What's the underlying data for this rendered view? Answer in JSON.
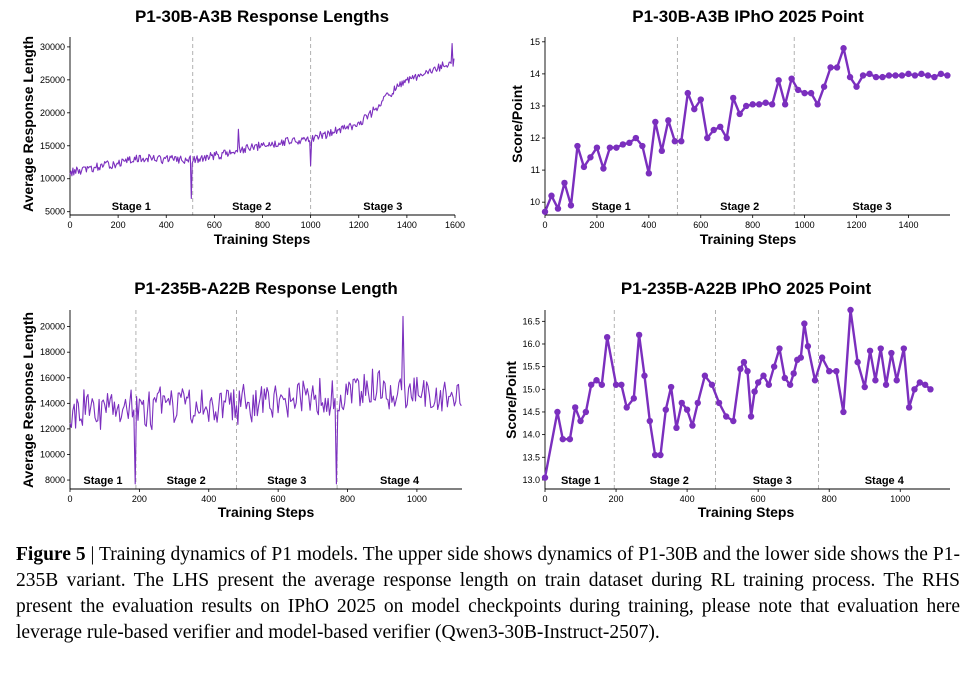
{
  "caption": {
    "label": "Figure 5",
    "text": "| Training dynamics of P1 models. The upper side shows dynamics of P1-30B and the lower side shows the P1-235B variant. The LHS present the average response length on train dataset during RL training process. The RHS present the evaluation results on IPhO 2025 on model checkpoints during training, please note that evaluation here leverage rule-based verifier and model-based verifier (Qwen3-30B-Instruct-2507)."
  },
  "colors": {
    "line": "#7b2fbe",
    "stage_divider": "#aaaaaa"
  },
  "chart_data": [
    {
      "id": "p30-length",
      "type": "line",
      "title": "P1-30B-A3B Response Lengths",
      "xlabel": "Training Steps",
      "ylabel": "Average Response Length",
      "xlim": [
        0,
        1600
      ],
      "ylim": [
        4500,
        31500
      ],
      "xticks": [
        0,
        200,
        400,
        600,
        800,
        1000,
        1200,
        1400,
        1600
      ],
      "yticks": [
        5000,
        10000,
        15000,
        20000,
        25000,
        30000
      ],
      "stage_boundaries": [
        510,
        1000
      ],
      "stages": [
        {
          "label": "Stage 1",
          "x": 255
        },
        {
          "label": "Stage 2",
          "x": 755
        },
        {
          "label": "Stage 3",
          "x": 1300
        }
      ],
      "markers": false,
      "noise": 600,
      "anchors_x": [
        0,
        100,
        200,
        300,
        400,
        510,
        600,
        700,
        800,
        900,
        1000,
        1100,
        1200,
        1250,
        1300,
        1350,
        1400,
        1450,
        1500,
        1550,
        1600
      ],
      "anchors_y": [
        11000,
        11600,
        12400,
        13100,
        13000,
        12800,
        13500,
        14200,
        15000,
        15700,
        16000,
        17200,
        18500,
        19800,
        22000,
        23500,
        24800,
        25500,
        26200,
        27200,
        27500
      ],
      "spikes": [
        [
          505,
          7000
        ],
        [
          1000,
          12000
        ],
        [
          700,
          17500
        ],
        [
          1590,
          30500
        ]
      ]
    },
    {
      "id": "p30-ipho",
      "type": "line",
      "title": "P1-30B-A3B IPhO 2025 Point",
      "xlabel": "Training Steps",
      "ylabel": "Score/Point",
      "xlim": [
        0,
        1560
      ],
      "ylim": [
        9.6,
        15.15
      ],
      "xticks": [
        0,
        200,
        400,
        600,
        800,
        1000,
        1200,
        1400
      ],
      "yticks": [
        10,
        11,
        12,
        13,
        14,
        15
      ],
      "stage_boundaries": [
        510,
        960
      ],
      "stages": [
        {
          "label": "Stage 1",
          "x": 255
        },
        {
          "label": "Stage 2",
          "x": 750
        },
        {
          "label": "Stage 3",
          "x": 1260
        }
      ],
      "markers": true,
      "x": [
        0,
        25,
        50,
        75,
        100,
        125,
        150,
        175,
        200,
        225,
        250,
        275,
        300,
        325,
        350,
        375,
        400,
        425,
        450,
        475,
        500,
        525,
        550,
        575,
        600,
        625,
        650,
        675,
        700,
        725,
        750,
        775,
        800,
        825,
        850,
        875,
        900,
        925,
        950,
        975,
        1000,
        1025,
        1050,
        1075,
        1100,
        1125,
        1150,
        1175,
        1200,
        1225,
        1250,
        1275,
        1300,
        1325,
        1350,
        1375,
        1400,
        1425,
        1450,
        1475,
        1500,
        1525,
        1550
      ],
      "y": [
        9.7,
        10.2,
        9.8,
        10.6,
        9.9,
        11.75,
        11.1,
        11.4,
        11.7,
        11.05,
        11.7,
        11.7,
        11.8,
        11.85,
        12.0,
        11.75,
        10.9,
        12.5,
        11.6,
        12.55,
        11.9,
        11.9,
        13.4,
        12.9,
        13.2,
        12.0,
        12.25,
        12.35,
        12.0,
        13.25,
        12.75,
        13.0,
        13.05,
        13.05,
        13.1,
        13.05,
        13.8,
        13.05,
        13.85,
        13.5,
        13.4,
        13.4,
        13.05,
        13.6,
        14.2,
        14.2,
        14.8,
        13.9,
        13.6,
        13.95,
        14.0,
        13.9,
        13.9,
        13.95,
        13.95,
        13.95,
        14.0,
        13.95,
        14.0,
        13.95,
        13.9,
        14.0,
        13.95
      ]
    },
    {
      "id": "p235-length",
      "type": "line",
      "title": "P1-235B-A22B Response Length",
      "xlabel": "Training Steps",
      "ylabel": "Average Response Length",
      "xlim": [
        0,
        1130
      ],
      "ylim": [
        7300,
        21300
      ],
      "xticks": [
        0,
        200,
        400,
        600,
        800,
        1000
      ],
      "yticks": [
        8000,
        10000,
        12000,
        14000,
        16000,
        18000,
        20000
      ],
      "stage_boundaries": [
        190,
        480,
        770
      ],
      "stages": [
        {
          "label": "Stage 1",
          "x": 95
        },
        {
          "label": "Stage 2",
          "x": 335
        },
        {
          "label": "Stage 3",
          "x": 625
        },
        {
          "label": "Stage 4",
          "x": 950
        }
      ],
      "markers": false,
      "noise": 1400,
      "anchors_x": [
        0,
        100,
        190,
        300,
        400,
        480,
        600,
        700,
        770,
        850,
        950,
        1050,
        1130
      ],
      "anchors_y": [
        13200,
        13800,
        13500,
        13800,
        13700,
        13900,
        14500,
        14400,
        14200,
        15200,
        15000,
        14800,
        14300
      ],
      "spikes": [
        [
          190,
          7700
        ],
        [
          770,
          7700
        ],
        [
          960,
          20800
        ]
      ]
    },
    {
      "id": "p235-ipho",
      "type": "line",
      "title": "P1-235B-A22B IPhO 2025 Point",
      "xlabel": "Training Steps",
      "ylabel": "Score/Point",
      "xlim": [
        0,
        1140
      ],
      "ylim": [
        12.8,
        16.75
      ],
      "xticks": [
        0,
        200,
        400,
        600,
        800,
        1000
      ],
      "yticks": [
        13.0,
        13.5,
        14.0,
        14.5,
        15.0,
        15.5,
        16.0,
        16.5
      ],
      "stage_boundaries": [
        195,
        480,
        770
      ],
      "stages": [
        {
          "label": "Stage 1",
          "x": 100
        },
        {
          "label": "Stage 2",
          "x": 350
        },
        {
          "label": "Stage 3",
          "x": 640
        },
        {
          "label": "Stage 4",
          "x": 955
        }
      ],
      "markers": true,
      "x": [
        0,
        35,
        50,
        70,
        85,
        100,
        115,
        130,
        145,
        160,
        175,
        200,
        215,
        230,
        250,
        265,
        280,
        295,
        310,
        325,
        340,
        355,
        370,
        385,
        400,
        415,
        430,
        450,
        470,
        490,
        510,
        530,
        550,
        560,
        570,
        580,
        590,
        600,
        615,
        630,
        645,
        660,
        675,
        690,
        700,
        710,
        720,
        730,
        740,
        760,
        780,
        800,
        820,
        840,
        860,
        880,
        900,
        915,
        930,
        945,
        960,
        975,
        990,
        1010,
        1025,
        1040,
        1055,
        1070,
        1085
      ],
      "y": [
        13.05,
        14.5,
        13.9,
        13.9,
        14.6,
        14.3,
        14.5,
        15.1,
        15.2,
        15.1,
        16.15,
        15.1,
        15.1,
        14.6,
        14.8,
        16.2,
        15.3,
        14.3,
        13.55,
        13.55,
        14.55,
        15.05,
        14.15,
        14.7,
        14.55,
        14.2,
        14.7,
        15.3,
        15.1,
        14.7,
        14.4,
        14.3,
        15.45,
        15.6,
        15.4,
        14.4,
        14.95,
        15.15,
        15.3,
        15.1,
        15.5,
        15.9,
        15.25,
        15.1,
        15.35,
        15.65,
        15.7,
        16.45,
        15.95,
        15.2,
        15.7,
        15.4,
        15.4,
        14.5,
        16.75,
        15.6,
        15.05,
        15.85,
        15.2,
        15.9,
        15.1,
        15.8,
        15.2,
        15.9,
        14.6,
        15.0,
        15.15,
        15.1,
        15.0
      ]
    }
  ]
}
